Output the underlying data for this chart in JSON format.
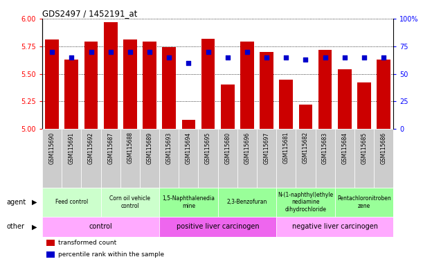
{
  "title": "GDS2497 / 1452191_at",
  "samples": [
    "GSM115690",
    "GSM115691",
    "GSM115692",
    "GSM115687",
    "GSM115688",
    "GSM115689",
    "GSM115693",
    "GSM115694",
    "GSM115695",
    "GSM115680",
    "GSM115696",
    "GSM115697",
    "GSM115681",
    "GSM115682",
    "GSM115683",
    "GSM115684",
    "GSM115685",
    "GSM115686"
  ],
  "bar_values": [
    5.81,
    5.63,
    5.79,
    5.97,
    5.81,
    5.79,
    5.74,
    5.08,
    5.82,
    5.4,
    5.79,
    5.7,
    5.45,
    5.22,
    5.72,
    5.54,
    5.42,
    5.63
  ],
  "dot_values": [
    70,
    65,
    70,
    70,
    70,
    70,
    65,
    60,
    70,
    65,
    70,
    65,
    65,
    63,
    65,
    65,
    65,
    65
  ],
  "bar_color": "#cc0000",
  "dot_color": "#0000cc",
  "ylim_left": [
    5.0,
    6.0
  ],
  "ylim_right": [
    0,
    100
  ],
  "yticks_left": [
    5.0,
    5.25,
    5.5,
    5.75,
    6.0
  ],
  "yticks_right": [
    0,
    25,
    50,
    75,
    100
  ],
  "agent_groups": [
    {
      "label": "Feed control",
      "start": 0,
      "end": 3,
      "color": "#ccffcc"
    },
    {
      "label": "Corn oil vehicle\ncontrol",
      "start": 3,
      "end": 6,
      "color": "#ccffcc"
    },
    {
      "label": "1,5-Naphthalenedia\nmine",
      "start": 6,
      "end": 9,
      "color": "#99ff99"
    },
    {
      "label": "2,3-Benzofuran",
      "start": 9,
      "end": 12,
      "color": "#99ff99"
    },
    {
      "label": "N-(1-naphthyl)ethyle\nnediamine\ndihydrochloride",
      "start": 12,
      "end": 15,
      "color": "#99ff99"
    },
    {
      "label": "Pentachloronitroben\nzene",
      "start": 15,
      "end": 18,
      "color": "#99ff99"
    }
  ],
  "other_groups": [
    {
      "label": "control",
      "start": 0,
      "end": 6,
      "color": "#ffaaff"
    },
    {
      "label": "positive liver carcinogen",
      "start": 6,
      "end": 12,
      "color": "#ee66ee"
    },
    {
      "label": "negative liver carcinogen",
      "start": 12,
      "end": 18,
      "color": "#ffaaff"
    }
  ],
  "legend_items": [
    {
      "label": "transformed count",
      "color": "#cc0000"
    },
    {
      "label": "percentile rank within the sample",
      "color": "#0000cc"
    }
  ]
}
